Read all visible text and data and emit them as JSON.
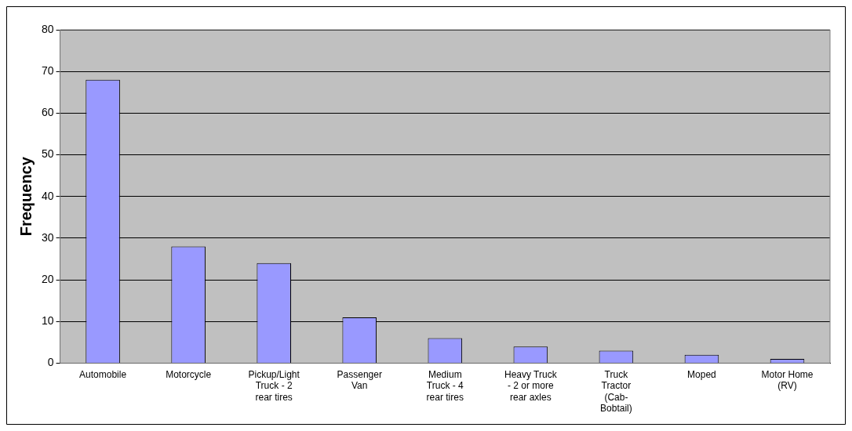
{
  "chart_data": {
    "type": "bar",
    "ylabel": "Frequency",
    "categories": [
      "Automobile",
      "Motorcycle",
      "Pickup/Light Truck - 2 rear tires",
      "Passenger Van",
      "Medium Truck - 4 rear tires",
      "Heavy Truck - 2 or more rear axles",
      "Truck Tractor (Cab-Bobtail)",
      "Moped",
      "Motor Home (RV)"
    ],
    "values": [
      68,
      28,
      24,
      11,
      6,
      4,
      3,
      2,
      1
    ],
    "color": "#9999ff",
    "ylim": [
      0,
      80
    ],
    "yticks": [
      0,
      10,
      20,
      30,
      40,
      50,
      60,
      70,
      80
    ],
    "grid": "y",
    "legend": false
  }
}
